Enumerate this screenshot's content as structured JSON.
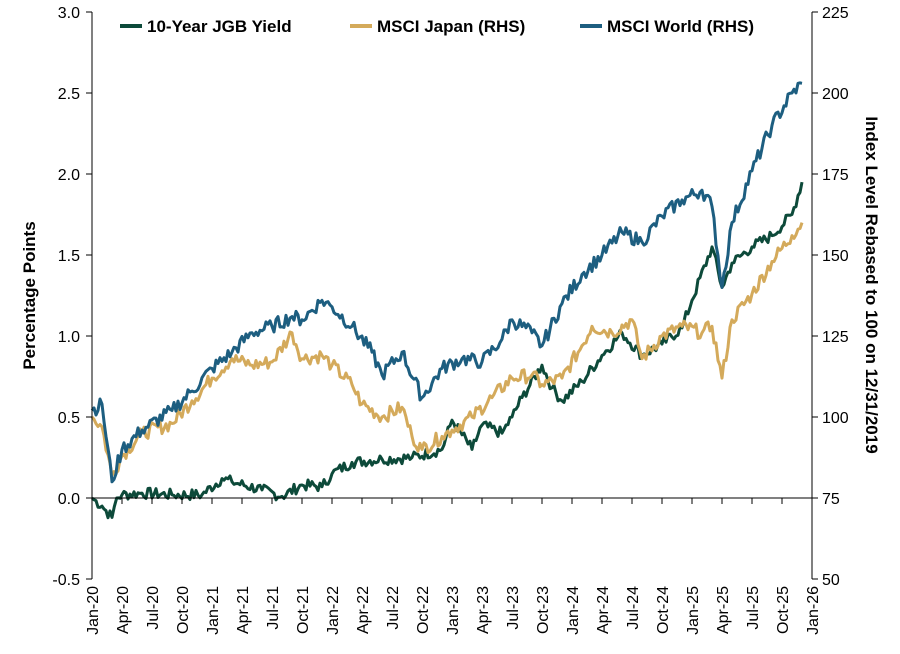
{
  "chart_data": {
    "type": "line",
    "title": "",
    "xlabel": "",
    "ylabel_left": "Percentage Points",
    "ylabel_right": "Index Level Rebased to 100 on 12/31/2019",
    "y_left_lim": [
      -0.5,
      3.0
    ],
    "y_left_ticks": [
      "-0.5",
      "0.0",
      "0.5",
      "1.0",
      "1.5",
      "2.0",
      "2.5",
      "3.0"
    ],
    "y_right_lim": [
      50,
      225
    ],
    "y_right_ticks": [
      "50",
      "75",
      "100",
      "125",
      "150",
      "175",
      "200",
      "225"
    ],
    "x_range": [
      "2020-01",
      "2026-01"
    ],
    "x_ticks": [
      "Jan-20",
      "Apr-20",
      "Jul-20",
      "Oct-20",
      "Jan-21",
      "Apr-21",
      "Jul-21",
      "Oct-21",
      "Jan-22",
      "Apr-22",
      "Jul-22",
      "Oct-22",
      "Jan-23",
      "Apr-23",
      "Jul-23",
      "Oct-23",
      "Jan-24",
      "Apr-24",
      "Jul-24",
      "Oct-24",
      "Jan-25",
      "Apr-25",
      "Jul-25",
      "Oct-25",
      "Jan-26"
    ],
    "legend_position": "top",
    "grid": false,
    "series": [
      {
        "name": "10-Year JGB Yield",
        "axis": "left",
        "color": "#0d4a3a",
        "points": [
          [
            "2020-01",
            0.0
          ],
          [
            "2020-02",
            -0.05
          ],
          [
            "2020-03",
            -0.12
          ],
          [
            "2020-03-15",
            0.0
          ],
          [
            "2020-04",
            0.02
          ],
          [
            "2020-06",
            0.03
          ],
          [
            "2020-09",
            0.02
          ],
          [
            "2020-12",
            0.02
          ],
          [
            "2021-02",
            0.12
          ],
          [
            "2021-03",
            0.1
          ],
          [
            "2021-06",
            0.05
          ],
          [
            "2021-08",
            0.01
          ],
          [
            "2021-10",
            0.08
          ],
          [
            "2021-12",
            0.07
          ],
          [
            "2022-01",
            0.15
          ],
          [
            "2022-03",
            0.22
          ],
          [
            "2022-06",
            0.24
          ],
          [
            "2022-09",
            0.25
          ],
          [
            "2022-12",
            0.3
          ],
          [
            "2023-01",
            0.48
          ],
          [
            "2023-03",
            0.3
          ],
          [
            "2023-04",
            0.45
          ],
          [
            "2023-06",
            0.4
          ],
          [
            "2023-07",
            0.5
          ],
          [
            "2023-08",
            0.62
          ],
          [
            "2023-10",
            0.82
          ],
          [
            "2023-11",
            0.68
          ],
          [
            "2023-12",
            0.6
          ],
          [
            "2024-02",
            0.72
          ],
          [
            "2024-04",
            0.88
          ],
          [
            "2024-06",
            1.02
          ],
          [
            "2024-08",
            0.88
          ],
          [
            "2024-10",
            0.95
          ],
          [
            "2024-12",
            1.05
          ],
          [
            "2025-01",
            1.22
          ],
          [
            "2025-03",
            1.55
          ],
          [
            "2025-04",
            1.3
          ],
          [
            "2025-05",
            1.45
          ],
          [
            "2025-07",
            1.55
          ],
          [
            "2025-09",
            1.62
          ],
          [
            "2025-11",
            1.75
          ],
          [
            "2025-12",
            1.95
          ]
        ]
      },
      {
        "name": "MSCI Japan (RHS)",
        "axis": "right",
        "color": "#d4aa5b",
        "points": [
          [
            "2020-01",
            100
          ],
          [
            "2020-02",
            97
          ],
          [
            "2020-03",
            82
          ],
          [
            "2020-04",
            88
          ],
          [
            "2020-06",
            95
          ],
          [
            "2020-09",
            98
          ],
          [
            "2020-11",
            105
          ],
          [
            "2021-01",
            112
          ],
          [
            "2021-03",
            118
          ],
          [
            "2021-05",
            116
          ],
          [
            "2021-07",
            117
          ],
          [
            "2021-09",
            126
          ],
          [
            "2021-10",
            118
          ],
          [
            "2021-12",
            119
          ],
          [
            "2022-01",
            116
          ],
          [
            "2022-03",
            110
          ],
          [
            "2022-04",
            104
          ],
          [
            "2022-06",
            100
          ],
          [
            "2022-08",
            103
          ],
          [
            "2022-09",
            94
          ],
          [
            "2022-10",
            90
          ],
          [
            "2022-12",
            94
          ],
          [
            "2023-01",
            96
          ],
          [
            "2023-03",
            100
          ],
          [
            "2023-05",
            106
          ],
          [
            "2023-07",
            112
          ],
          [
            "2023-09",
            113
          ],
          [
            "2023-10",
            110
          ],
          [
            "2023-12",
            112
          ],
          [
            "2024-02",
            122
          ],
          [
            "2024-03",
            128
          ],
          [
            "2024-05",
            126
          ],
          [
            "2024-07",
            130
          ],
          [
            "2024-08",
            118
          ],
          [
            "2024-10",
            125
          ],
          [
            "2024-12",
            128
          ],
          [
            "2025-02",
            126
          ],
          [
            "2025-03",
            128
          ],
          [
            "2025-04",
            112
          ],
          [
            "2025-05",
            130
          ],
          [
            "2025-07",
            138
          ],
          [
            "2025-09",
            148
          ],
          [
            "2025-11",
            156
          ],
          [
            "2025-12",
            160
          ]
        ]
      },
      {
        "name": "MSCI World (RHS)",
        "axis": "right",
        "color": "#1d5e80",
        "points": [
          [
            "2020-01",
            102
          ],
          [
            "2020-02",
            104
          ],
          [
            "2020-03",
            80
          ],
          [
            "2020-04",
            90
          ],
          [
            "2020-06",
            96
          ],
          [
            "2020-09",
            102
          ],
          [
            "2020-11",
            108
          ],
          [
            "2021-01",
            115
          ],
          [
            "2021-03",
            120
          ],
          [
            "2021-05",
            126
          ],
          [
            "2021-07",
            128
          ],
          [
            "2021-09",
            131
          ],
          [
            "2021-10",
            130
          ],
          [
            "2021-12",
            136
          ],
          [
            "2022-01",
            134
          ],
          [
            "2022-03",
            128
          ],
          [
            "2022-05",
            120
          ],
          [
            "2022-06",
            113
          ],
          [
            "2022-08",
            120
          ],
          [
            "2022-10",
            106
          ],
          [
            "2022-12",
            115
          ],
          [
            "2023-02",
            118
          ],
          [
            "2023-04",
            117
          ],
          [
            "2023-06",
            124
          ],
          [
            "2023-07",
            130
          ],
          [
            "2023-09",
            126
          ],
          [
            "2023-10",
            122
          ],
          [
            "2023-12",
            135
          ],
          [
            "2024-02",
            144
          ],
          [
            "2024-04",
            150
          ],
          [
            "2024-06",
            157
          ],
          [
            "2024-08",
            154
          ],
          [
            "2024-10",
            162
          ],
          [
            "2024-12",
            167
          ],
          [
            "2025-02",
            170
          ],
          [
            "2025-03",
            165
          ],
          [
            "2025-04",
            140
          ],
          [
            "2025-05",
            160
          ],
          [
            "2025-07",
            176
          ],
          [
            "2025-09",
            190
          ],
          [
            "2025-11",
            200
          ],
          [
            "2025-12",
            203
          ]
        ]
      }
    ]
  }
}
